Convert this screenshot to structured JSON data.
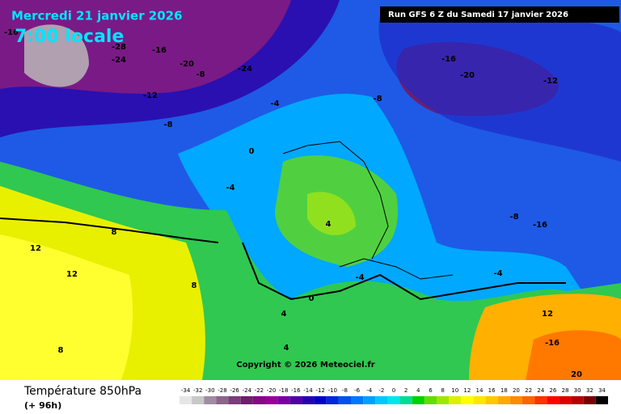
{
  "header": {
    "date": "Mercredi 21 janvier 2026",
    "time": "7:00 locale",
    "run": "Run GFS 6 Z du Samedi 17 janvier 2026"
  },
  "copyright": "Copyright © 2026 Meteociel.fr",
  "legend": {
    "title": "Température 850hPa",
    "subtitle": "(+ 96h)",
    "ticks": [
      -34,
      -32,
      -30,
      -28,
      -26,
      -24,
      -22,
      -20,
      -18,
      -16,
      -14,
      -12,
      -10,
      -8,
      -6,
      -4,
      -2,
      0,
      2,
      4,
      6,
      8,
      10,
      12,
      14,
      16,
      18,
      20,
      22,
      24,
      26,
      28,
      30,
      32,
      34
    ],
    "colors": [
      "#e6e6e6",
      "#c8c8c8",
      "#a08ca0",
      "#8c648c",
      "#7d3c7d",
      "#6e1e6e",
      "#820a82",
      "#960096",
      "#7800a0",
      "#5000a0",
      "#2800b4",
      "#0000c8",
      "#0028dc",
      "#0050f0",
      "#0078ff",
      "#00a0ff",
      "#00c8ff",
      "#00e6e6",
      "#00dc96",
      "#00d200",
      "#64dc00",
      "#a0e600",
      "#dcf000",
      "#ffff00",
      "#ffe600",
      "#ffc800",
      "#ffaa00",
      "#ff8c00",
      "#ff6400",
      "#ff3200",
      "#ff0000",
      "#dc0000",
      "#b40000",
      "#780000",
      "#000000"
    ]
  },
  "map": {
    "contour_labels": [
      -16,
      -28,
      -24,
      -16,
      -20,
      -24,
      -8,
      -12,
      -8,
      -4,
      -8,
      -16,
      -20,
      -12,
      -4,
      0,
      4,
      8,
      12,
      12,
      8,
      4,
      0,
      -4,
      -8,
      -16,
      -4,
      12,
      -16,
      20,
      8,
      4
    ]
  }
}
